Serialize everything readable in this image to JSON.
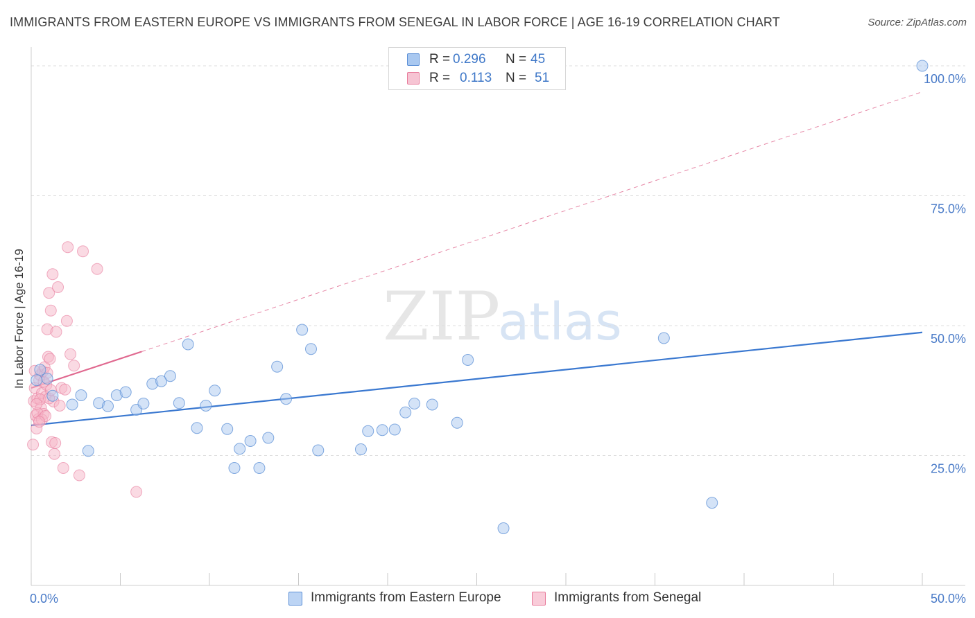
{
  "title": "IMMIGRANTS FROM EASTERN EUROPE VS IMMIGRANTS FROM SENEGAL IN LABOR FORCE | AGE 16-19 CORRELATION CHART",
  "source": "Source: ZipAtlas.com",
  "watermark": {
    "zip": "ZIP",
    "atlas": "atlas"
  },
  "colors": {
    "blue_fill": "#a9c8f0",
    "blue_stroke": "#5b8fd6",
    "blue_line": "#3a78d0",
    "pink_fill": "#f6b6c8",
    "pink_stroke": "#e87c9c",
    "pink_line": "#e0688f",
    "grid": "#dddddd",
    "tick_text": "#4a7bc8"
  },
  "legend": {
    "r_label": "R =",
    "n_label": "N =",
    "items": [
      {
        "name": "Immigrants from Eastern Europe",
        "r": "0.296",
        "n": "45",
        "color": "blue"
      },
      {
        "name": "Immigrants from Senegal",
        "r": "0.113",
        "n": "51",
        "color": "pink"
      }
    ]
  },
  "chart_data": {
    "type": "scatter",
    "title": "IMMIGRANTS FROM EASTERN EUROPE VS IMMIGRANTS FROM SENEGAL IN LABOR FORCE | AGE 16-19 CORRELATION CHART",
    "xlabel": "",
    "ylabel": "In Labor Force | Age 16-19",
    "xlim": [
      0,
      50
    ],
    "ylim": [
      0,
      102
    ],
    "x_tick_labels": [
      "0.0%",
      "50.0%"
    ],
    "y_ticks": [
      25,
      50,
      75,
      100
    ],
    "y_tick_labels": [
      "25.0%",
      "50.0%",
      "75.0%",
      "100.0%"
    ],
    "grid": true,
    "series": [
      {
        "name": "Immigrants from Eastern Europe",
        "color": "blue",
        "points": [
          [
            0.5,
            41.5
          ],
          [
            0.9,
            39.8
          ],
          [
            1.2,
            36.5
          ],
          [
            2.3,
            34.8
          ],
          [
            2.8,
            36.6
          ],
          [
            3.2,
            25.9
          ],
          [
            3.8,
            35.1
          ],
          [
            4.3,
            34.5
          ],
          [
            4.8,
            36.6
          ],
          [
            5.3,
            37.2
          ],
          [
            5.9,
            33.8
          ],
          [
            6.3,
            35.0
          ],
          [
            6.8,
            38.8
          ],
          [
            7.3,
            39.3
          ],
          [
            7.8,
            40.3
          ],
          [
            8.3,
            35.1
          ],
          [
            8.8,
            46.4
          ],
          [
            9.3,
            30.3
          ],
          [
            9.8,
            34.6
          ],
          [
            10.3,
            37.5
          ],
          [
            11.0,
            30.1
          ],
          [
            11.4,
            22.6
          ],
          [
            11.7,
            26.3
          ],
          [
            12.3,
            27.8
          ],
          [
            12.8,
            22.6
          ],
          [
            13.3,
            28.4
          ],
          [
            13.8,
            42.1
          ],
          [
            14.3,
            35.9
          ],
          [
            15.2,
            49.2
          ],
          [
            15.7,
            45.5
          ],
          [
            16.1,
            26.0
          ],
          [
            18.5,
            26.2
          ],
          [
            18.9,
            29.7
          ],
          [
            19.7,
            29.9
          ],
          [
            20.4,
            30.0
          ],
          [
            21.0,
            33.3
          ],
          [
            21.5,
            35.0
          ],
          [
            22.5,
            34.8
          ],
          [
            23.9,
            31.3
          ],
          [
            24.5,
            43.4
          ],
          [
            26.5,
            11.0
          ],
          [
            35.5,
            47.6
          ],
          [
            38.2,
            15.9
          ],
          [
            50.0,
            100.0
          ],
          [
            0.3,
            39.5
          ]
        ],
        "trend": {
          "x": [
            0,
            50
          ],
          "y": [
            30.8,
            48.7
          ]
        }
      },
      {
        "name": "Immigrants from Senegal",
        "color": "pink",
        "points": [
          [
            0.1,
            27.1
          ],
          [
            0.15,
            35.5
          ],
          [
            0.2,
            38.0
          ],
          [
            0.25,
            32.7
          ],
          [
            0.3,
            30.2
          ],
          [
            0.35,
            36.0
          ],
          [
            0.4,
            32.0
          ],
          [
            0.45,
            39.5
          ],
          [
            0.5,
            40.5
          ],
          [
            0.55,
            34.2
          ],
          [
            0.6,
            37.0
          ],
          [
            0.65,
            41.2
          ],
          [
            0.7,
            33.0
          ],
          [
            0.75,
            42.0
          ],
          [
            0.8,
            36.3
          ],
          [
            0.85,
            38.6
          ],
          [
            0.9,
            49.3
          ],
          [
            0.95,
            44.0
          ],
          [
            1.0,
            56.3
          ],
          [
            1.05,
            43.6
          ],
          [
            1.1,
            52.9
          ],
          [
            1.15,
            27.6
          ],
          [
            1.2,
            59.9
          ],
          [
            1.25,
            35.4
          ],
          [
            1.3,
            25.3
          ],
          [
            1.35,
            27.4
          ],
          [
            1.4,
            48.8
          ],
          [
            1.5,
            57.4
          ],
          [
            1.6,
            34.6
          ],
          [
            1.7,
            38.0
          ],
          [
            1.8,
            22.6
          ],
          [
            1.9,
            37.7
          ],
          [
            2.0,
            50.9
          ],
          [
            2.05,
            65.1
          ],
          [
            2.2,
            44.5
          ],
          [
            2.4,
            42.3
          ],
          [
            2.7,
            21.2
          ],
          [
            2.9,
            64.3
          ],
          [
            3.7,
            60.9
          ],
          [
            5.9,
            18.0
          ],
          [
            0.2,
            41.3
          ],
          [
            0.35,
            33.2
          ],
          [
            0.5,
            35.8
          ],
          [
            0.6,
            31.9
          ],
          [
            0.7,
            39.2
          ],
          [
            0.8,
            32.6
          ],
          [
            0.9,
            40.9
          ],
          [
            1.0,
            36.0
          ],
          [
            1.1,
            37.6
          ],
          [
            0.3,
            34.9
          ],
          [
            0.45,
            31.5
          ]
        ],
        "trend_solid": {
          "x": [
            0,
            6.2
          ],
          "y": [
            38.0,
            45.0
          ]
        },
        "trend_dashed": {
          "x": [
            6.2,
            50
          ],
          "y": [
            45.0,
            95.0
          ]
        }
      }
    ]
  }
}
